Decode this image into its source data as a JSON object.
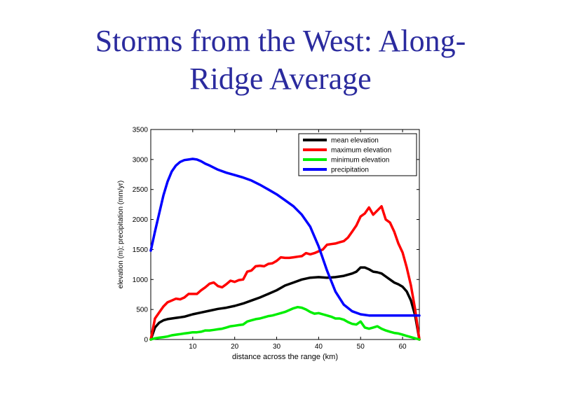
{
  "slide": {
    "title_line1": "Storms from the West: Along-",
    "title_line2": "Ridge Average"
  },
  "chart_data": {
    "type": "line",
    "xlabel": "distance across the range (km)",
    "ylabel": "elevation (m); precipitation (mm/yr)",
    "xlim": [
      0,
      64
    ],
    "ylim": [
      0,
      3500
    ],
    "xticks": [
      10,
      20,
      30,
      40,
      50,
      60
    ],
    "yticks": [
      0,
      500,
      1000,
      1500,
      2000,
      2500,
      3000,
      3500
    ],
    "grid": false,
    "legend_position": "top-right",
    "series": [
      {
        "name": "mean elevation",
        "color": "#000000",
        "x": [
          0,
          1,
          2,
          3,
          4,
          5,
          6,
          7,
          8,
          9,
          10,
          12,
          14,
          16,
          18,
          20,
          22,
          24,
          26,
          28,
          30,
          32,
          34,
          36,
          38,
          40,
          42,
          44,
          46,
          48,
          49,
          50,
          51,
          52,
          53,
          54,
          55,
          56,
          57,
          58,
          59,
          60,
          61,
          62,
          63,
          64
        ],
        "y": [
          0,
          200,
          280,
          320,
          340,
          350,
          360,
          370,
          380,
          400,
          420,
          450,
          480,
          510,
          530,
          560,
          600,
          650,
          700,
          760,
          820,
          900,
          950,
          1000,
          1030,
          1040,
          1030,
          1040,
          1060,
          1100,
          1130,
          1200,
          1200,
          1170,
          1130,
          1120,
          1100,
          1050,
          1000,
          950,
          920,
          880,
          800,
          650,
          400,
          0
        ]
      },
      {
        "name": "maximum elevation",
        "color": "#ff0000",
        "x": [
          0,
          1,
          2,
          3,
          4,
          5,
          6,
          7,
          8,
          9,
          10,
          11,
          12,
          13,
          14,
          15,
          16,
          17,
          18,
          19,
          20,
          21,
          22,
          23,
          24,
          25,
          26,
          27,
          28,
          29,
          30,
          31,
          32,
          33,
          34,
          35,
          36,
          37,
          38,
          39,
          40,
          41,
          42,
          43,
          44,
          45,
          46,
          47,
          48,
          49,
          50,
          51,
          52,
          53,
          54,
          55,
          56,
          57,
          58,
          59,
          60,
          61,
          62,
          63,
          64
        ],
        "y": [
          0,
          350,
          450,
          550,
          620,
          650,
          680,
          670,
          700,
          760,
          760,
          760,
          820,
          870,
          930,
          950,
          890,
          870,
          920,
          980,
          960,
          990,
          1000,
          1130,
          1150,
          1220,
          1230,
          1220,
          1260,
          1270,
          1310,
          1370,
          1360,
          1360,
          1370,
          1380,
          1390,
          1440,
          1420,
          1440,
          1470,
          1500,
          1580,
          1590,
          1600,
          1620,
          1640,
          1700,
          1800,
          1900,
          2050,
          2100,
          2200,
          2080,
          2150,
          2220,
          2000,
          1950,
          1800,
          1600,
          1450,
          1200,
          900,
          500,
          0
        ]
      },
      {
        "name": "minimum elevation",
        "color": "#00ee00",
        "x": [
          0,
          1,
          2,
          3,
          4,
          5,
          6,
          7,
          8,
          9,
          10,
          11,
          12,
          13,
          14,
          15,
          16,
          17,
          18,
          19,
          20,
          21,
          22,
          23,
          24,
          25,
          26,
          27,
          28,
          29,
          30,
          31,
          32,
          33,
          34,
          35,
          36,
          37,
          38,
          39,
          40,
          41,
          42,
          43,
          44,
          45,
          46,
          47,
          48,
          49,
          50,
          51,
          52,
          53,
          54,
          55,
          56,
          57,
          58,
          59,
          60,
          61,
          62,
          63,
          64
        ],
        "y": [
          0,
          20,
          30,
          40,
          50,
          70,
          80,
          90,
          100,
          110,
          120,
          120,
          130,
          150,
          150,
          160,
          170,
          180,
          200,
          220,
          230,
          240,
          250,
          300,
          320,
          340,
          350,
          370,
          390,
          400,
          420,
          440,
          460,
          490,
          520,
          540,
          530,
          500,
          460,
          430,
          440,
          420,
          400,
          380,
          350,
          350,
          330,
          290,
          260,
          250,
          300,
          200,
          180,
          200,
          220,
          180,
          150,
          130,
          110,
          100,
          80,
          60,
          40,
          20,
          0
        ]
      },
      {
        "name": "precipitation",
        "color": "#0000ff",
        "x": [
          0,
          1,
          2,
          3,
          4,
          5,
          6,
          7,
          8,
          9,
          10,
          11,
          12,
          13,
          14,
          16,
          18,
          20,
          22,
          24,
          26,
          28,
          30,
          32,
          34,
          36,
          38,
          40,
          42,
          44,
          46,
          48,
          50,
          52,
          54,
          56,
          58,
          60,
          62,
          64
        ],
        "y": [
          1480,
          1800,
          2100,
          2400,
          2630,
          2800,
          2900,
          2960,
          2990,
          3000,
          3010,
          3000,
          2970,
          2930,
          2900,
          2830,
          2780,
          2740,
          2700,
          2650,
          2580,
          2500,
          2420,
          2320,
          2220,
          2080,
          1880,
          1550,
          1150,
          800,
          580,
          470,
          420,
          400,
          400,
          400,
          400,
          400,
          400,
          400
        ]
      }
    ]
  }
}
